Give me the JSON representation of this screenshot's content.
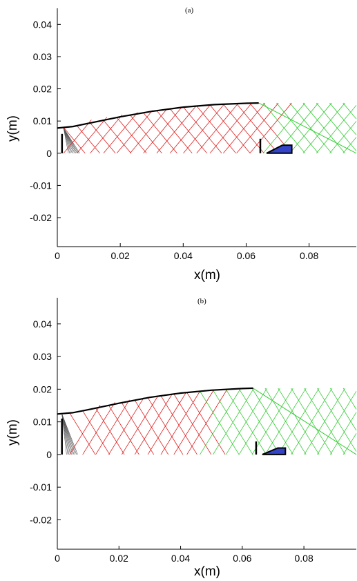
{
  "chart_data": [
    {
      "type": "line",
      "title": "(a)",
      "xlabel": "x(m)",
      "ylabel": "y(m)",
      "xlim": [
        0,
        0.095
      ],
      "ylim": [
        -0.029,
        0.045
      ],
      "xticks": [
        "0",
        "0.02",
        "0.04",
        "0.06",
        "0.08"
      ],
      "yticks": [
        "0.04",
        "0.03",
        "0.02",
        "0.01",
        "0",
        "-0.01",
        "-0.02"
      ],
      "xtick_values": [
        0,
        0.02,
        0.04,
        0.06,
        0.08
      ],
      "ytick_values": [
        0.04,
        0.03,
        0.02,
        0.01,
        0,
        -0.01,
        -0.02
      ],
      "contour": {
        "x": [
          0,
          0.005,
          0.01,
          0.02,
          0.03,
          0.04,
          0.05,
          0.06,
          0.064
        ],
        "y": [
          0.0078,
          0.0083,
          0.0093,
          0.0113,
          0.013,
          0.0143,
          0.0151,
          0.0155,
          0.0156
        ]
      },
      "mesh": {
        "x_start": 0.002,
        "x_end": 0.095,
        "x_red_end": 0.064,
        "y_base": 0,
        "y_top_left": 0.0078,
        "y_top_right": 0.0156,
        "x_apex_green": 0.064,
        "fan_origin": [
          0.002,
          0.0078
        ]
      },
      "wall": {
        "x": 0.0015,
        "y0": 0,
        "y1": 0.006
      },
      "marker": {
        "x": 0.0645,
        "y0": 0,
        "y1": 0.0045
      },
      "body": {
        "x": [
          0.0665,
          0.0745,
          0.0745,
          0.0715,
          0.0665
        ],
        "y": [
          0,
          0,
          0.0025,
          0.0025,
          0
        ]
      },
      "colors": {
        "characteristics": "#e11b1b",
        "expansion": "#33cc33",
        "contour": "#000000",
        "body": "#3344c8",
        "fan": "#555555"
      }
    },
    {
      "type": "line",
      "title": "(b)",
      "xlabel": "x(m)",
      "ylabel": "y(m)",
      "xlim": [
        0,
        0.097
      ],
      "ylim": [
        -0.029,
        0.048
      ],
      "xticks": [
        "0",
        "0.02",
        "0.04",
        "0.06",
        "0.08"
      ],
      "yticks": [
        "0.04",
        "0.03",
        "0.02",
        "0.01",
        "0",
        "-0.01",
        "-0.02"
      ],
      "xtick_values": [
        0,
        0.02,
        0.04,
        0.06,
        0.08
      ],
      "ytick_values": [
        0.04,
        0.03,
        0.02,
        0.01,
        0,
        -0.01,
        -0.02
      ],
      "contour": {
        "x": [
          0,
          0.005,
          0.01,
          0.02,
          0.03,
          0.04,
          0.05,
          0.06,
          0.0635
        ],
        "y": [
          0.0124,
          0.0128,
          0.0137,
          0.0157,
          0.0175,
          0.0188,
          0.0197,
          0.0202,
          0.0203
        ]
      },
      "mesh": {
        "x_start": 0.004,
        "x_end": 0.097,
        "x_red_end": 0.046,
        "y_base": 0,
        "y_top_left": 0.0124,
        "y_top_right": 0.0203,
        "x_apex_green": 0.0635,
        "fan_origin": [
          0.0015,
          0.0124
        ]
      },
      "wall": {
        "x": 0.0015,
        "y0": 0,
        "y1": 0.011
      },
      "marker": {
        "x": 0.0645,
        "y0": 0,
        "y1": 0.004
      },
      "body": {
        "x": [
          0.0665,
          0.074,
          0.074,
          0.0715,
          0.0665
        ],
        "y": [
          0,
          0,
          0.002,
          0.002,
          0
        ]
      },
      "colors": {
        "characteristics": "#e11b1b",
        "expansion": "#33cc33",
        "contour": "#000000",
        "body": "#3344c8",
        "fan": "#555555"
      }
    }
  ]
}
